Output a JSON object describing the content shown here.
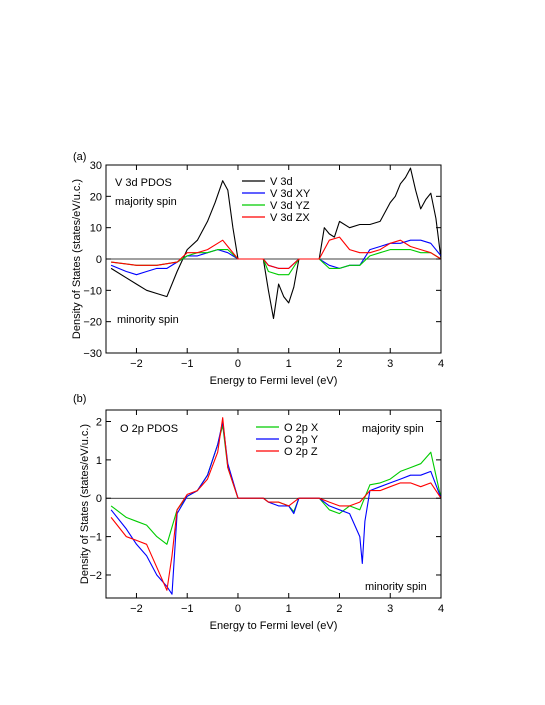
{
  "panels": [
    {
      "tag": "(a)",
      "title": "V 3d PDOS",
      "annot_top": "majority spin",
      "annot_bottom": "minority spin",
      "legend": [
        "V 3d",
        "V 3d XY",
        "V 3d YZ",
        "V 3d ZX"
      ]
    },
    {
      "tag": "(b)",
      "title": "O 2p PDOS",
      "annot_top": "majority spin",
      "annot_bottom": "minority spin",
      "legend": [
        "O 2p X",
        "O 2p Y",
        "O 2p Z"
      ]
    }
  ],
  "chart_data": [
    {
      "type": "line",
      "title": "V 3d PDOS",
      "xlabel": "Energy to Fermi level (eV)",
      "ylabel": "Density of States (states/eV/u.c.)",
      "xlim": [
        -2.6,
        4
      ],
      "ylim": [
        -30,
        30
      ],
      "xticks": [
        -2,
        -1,
        0,
        1,
        2,
        3,
        4
      ],
      "yticks": [
        -30,
        -20,
        -10,
        0,
        10,
        20,
        30
      ],
      "grid": false,
      "legend_position": "top-center",
      "series": [
        {
          "name": "V 3d",
          "color": "#000000",
          "x": [
            -2.5,
            -2.2,
            -2.0,
            -1.8,
            -1.6,
            -1.4,
            -1.2,
            -1.0,
            -0.8,
            -0.6,
            -0.45,
            -0.3,
            -0.2,
            -0.1,
            0.0,
            0.5,
            0.6,
            0.7,
            0.8,
            0.9,
            1.0,
            1.1,
            1.2,
            1.6,
            1.7,
            1.8,
            1.9,
            2.0,
            2.2,
            2.4,
            2.6,
            2.8,
            3.0,
            3.1,
            3.2,
            3.3,
            3.4,
            3.5,
            3.6,
            3.7,
            3.8,
            3.9,
            4.0
          ],
          "y": [
            -3,
            -6,
            -8,
            -10,
            -11,
            -12,
            -4,
            3,
            6,
            12,
            18,
            25,
            22,
            10,
            0,
            0,
            -10,
            -19,
            -8,
            -12,
            -14,
            -9,
            0,
            0,
            10,
            8,
            7,
            12,
            10,
            11,
            11,
            12,
            18,
            20,
            24,
            26,
            29,
            22,
            16,
            19,
            21,
            13,
            0
          ]
        },
        {
          "name": "V 3d XY",
          "color": "#0000ff",
          "x": [
            -2.5,
            -2.2,
            -2.0,
            -1.8,
            -1.6,
            -1.4,
            -1.2,
            -1.0,
            -0.8,
            -0.6,
            -0.4,
            -0.2,
            0.0,
            0.5,
            0.6,
            0.8,
            1.0,
            1.2,
            1.6,
            1.8,
            2.0,
            2.2,
            2.4,
            2.6,
            2.8,
            3.0,
            3.2,
            3.4,
            3.6,
            3.8,
            4.0
          ],
          "y": [
            -2,
            -4,
            -5,
            -4,
            -3,
            -3,
            -1,
            1,
            1,
            2,
            3,
            2,
            0,
            0,
            -2,
            -3,
            -3,
            0,
            0,
            -2,
            -3,
            -2,
            -2,
            3,
            4,
            5,
            5,
            6,
            6,
            5,
            1
          ]
        },
        {
          "name": "V 3d YZ",
          "color": "#00cc00",
          "x": [
            -2.5,
            -2.0,
            -1.6,
            -1.2,
            -1.0,
            -0.8,
            -0.6,
            -0.4,
            -0.2,
            0.0,
            0.5,
            0.6,
            0.8,
            1.0,
            1.2,
            1.6,
            1.8,
            2.0,
            2.2,
            2.4,
            2.6,
            2.8,
            3.0,
            3.2,
            3.4,
            3.6,
            3.8,
            4.0
          ],
          "y": [
            -1,
            -2,
            -2,
            -1,
            1,
            2,
            2,
            3,
            3,
            0,
            0,
            -4,
            -5,
            -5,
            0,
            0,
            -3,
            -3,
            -2,
            -2,
            1,
            2,
            3,
            3,
            3,
            2,
            2,
            0
          ]
        },
        {
          "name": "V 3d ZX",
          "color": "#ff0000",
          "x": [
            -2.5,
            -2.0,
            -1.6,
            -1.2,
            -1.0,
            -0.8,
            -0.6,
            -0.4,
            -0.3,
            -0.2,
            0.0,
            0.5,
            0.6,
            0.8,
            1.0,
            1.2,
            1.6,
            1.8,
            2.0,
            2.2,
            2.4,
            2.6,
            2.8,
            3.0,
            3.2,
            3.4,
            3.6,
            3.8,
            4.0
          ],
          "y": [
            -1,
            -2,
            -2,
            -1,
            2,
            2,
            3,
            5,
            6,
            4,
            0,
            0,
            -2,
            -3,
            -3,
            0,
            0,
            6,
            7,
            3,
            2,
            2,
            3,
            5,
            6,
            4,
            3,
            2,
            0
          ]
        }
      ]
    },
    {
      "type": "line",
      "title": "O 2p PDOS",
      "xlabel": "Energy to Fermi level (eV)",
      "ylabel": "Density of States (states/eV/u.c.)",
      "xlim": [
        -2.6,
        4
      ],
      "ylim": [
        -2.6,
        2.3
      ],
      "xticks": [
        -2,
        -1,
        0,
        1,
        2,
        3,
        4
      ],
      "yticks": [
        -2,
        -1,
        0,
        1,
        2
      ],
      "grid": false,
      "legend_position": "top-center",
      "series": [
        {
          "name": "O 2p X",
          "color": "#00cc00",
          "x": [
            -2.5,
            -2.2,
            -2.0,
            -1.8,
            -1.6,
            -1.4,
            -1.2,
            -1.0,
            -0.8,
            -0.6,
            -0.4,
            -0.3,
            -0.2,
            0.0,
            0.5,
            0.6,
            0.8,
            1.0,
            1.1,
            1.2,
            1.6,
            1.8,
            2.0,
            2.2,
            2.4,
            2.6,
            2.8,
            3.0,
            3.2,
            3.4,
            3.6,
            3.8,
            4.0
          ],
          "y": [
            -0.2,
            -0.5,
            -0.6,
            -0.7,
            -1.0,
            -1.2,
            -0.3,
            0.05,
            0.2,
            0.6,
            1.4,
            1.9,
            0.8,
            0,
            0,
            -0.1,
            -0.1,
            -0.2,
            -0.35,
            0,
            0,
            -0.3,
            -0.4,
            -0.2,
            -0.3,
            0.35,
            0.4,
            0.5,
            0.7,
            0.8,
            0.9,
            1.2,
            0
          ]
        },
        {
          "name": "O 2p Y",
          "color": "#0000ff",
          "x": [
            -2.5,
            -2.2,
            -2.0,
            -1.8,
            -1.6,
            -1.4,
            -1.3,
            -1.2,
            -1.0,
            -0.8,
            -0.6,
            -0.4,
            -0.3,
            -0.2,
            0.0,
            0.5,
            0.6,
            0.8,
            1.0,
            1.1,
            1.2,
            1.6,
            1.8,
            2.0,
            2.2,
            2.4,
            2.45,
            2.5,
            2.6,
            2.8,
            3.0,
            3.2,
            3.4,
            3.6,
            3.8,
            4.0
          ],
          "y": [
            -0.3,
            -0.8,
            -1.2,
            -1.5,
            -2.0,
            -2.3,
            -2.5,
            -0.4,
            0.05,
            0.2,
            0.6,
            1.4,
            2.0,
            0.9,
            0,
            0,
            -0.1,
            -0.2,
            -0.2,
            -0.4,
            0,
            0,
            -0.2,
            -0.3,
            -0.4,
            -1.0,
            -1.7,
            -0.6,
            0.2,
            0.3,
            0.4,
            0.5,
            0.6,
            0.6,
            0.7,
            0
          ]
        },
        {
          "name": "O 2p Z",
          "color": "#ff0000",
          "x": [
            -2.5,
            -2.2,
            -2.0,
            -1.8,
            -1.6,
            -1.4,
            -1.3,
            -1.2,
            -1.0,
            -0.8,
            -0.6,
            -0.4,
            -0.3,
            -0.2,
            0.0,
            0.5,
            0.6,
            0.8,
            1.0,
            1.2,
            1.6,
            1.8,
            2.0,
            2.2,
            2.4,
            2.6,
            2.8,
            3.0,
            3.2,
            3.4,
            3.6,
            3.8,
            4.0
          ],
          "y": [
            -0.5,
            -1.0,
            -1.1,
            -1.2,
            -1.8,
            -2.4,
            -1.5,
            -0.3,
            0.1,
            0.2,
            0.5,
            1.2,
            2.1,
            0.8,
            0,
            0,
            -0.1,
            -0.1,
            -0.2,
            0,
            0,
            -0.1,
            -0.2,
            -0.2,
            -0.1,
            0.2,
            0.2,
            0.3,
            0.4,
            0.4,
            0.3,
            0.4,
            0
          ]
        }
      ]
    }
  ]
}
